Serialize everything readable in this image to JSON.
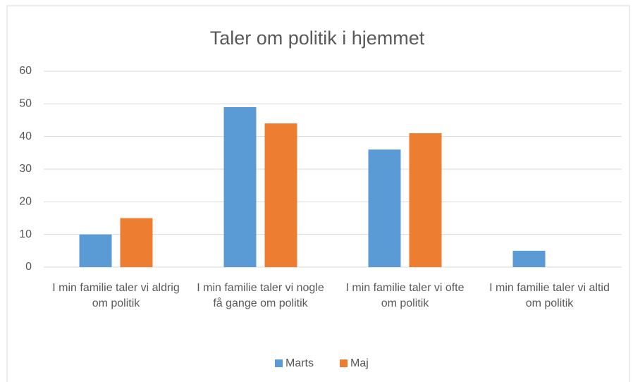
{
  "chart_data": {
    "type": "bar",
    "title": "Taler om politik i hjemmet",
    "categories": [
      "I min familie taler vi aldrig om politik",
      "I min familie taler vi nogle få gange om politik",
      "I min familie taler vi ofte om politik",
      "I min familie taler vi altid om politik"
    ],
    "series": [
      {
        "name": "Marts",
        "color": "#5b9bd5",
        "values": [
          10,
          49,
          36,
          5
        ]
      },
      {
        "name": "Maj",
        "color": "#ed7d31",
        "values": [
          15,
          44,
          41,
          0
        ]
      }
    ],
    "ylim": [
      0,
      60
    ],
    "yticks": [
      0,
      10,
      20,
      30,
      40,
      50,
      60
    ],
    "grid": true,
    "legend": "bottom"
  }
}
